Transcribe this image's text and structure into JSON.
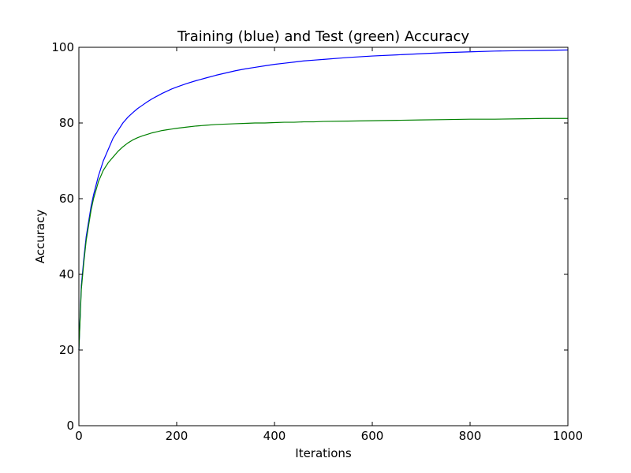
{
  "chart_data": {
    "type": "line",
    "title": "Training (blue) and Test (green) Accuracy",
    "xlabel": "Iterations",
    "ylabel": "Accuracy",
    "xlim": [
      0,
      1000
    ],
    "ylim": [
      0,
      100
    ],
    "xticks": [
      0,
      200,
      400,
      600,
      800,
      1000
    ],
    "yticks": [
      0,
      20,
      40,
      60,
      80,
      100
    ],
    "grid": false,
    "legend": "none",
    "x": [
      0,
      5,
      10,
      15,
      20,
      25,
      30,
      40,
      50,
      60,
      70,
      80,
      90,
      100,
      110,
      120,
      130,
      140,
      150,
      160,
      170,
      180,
      190,
      200,
      220,
      240,
      260,
      280,
      300,
      320,
      340,
      360,
      380,
      400,
      420,
      440,
      460,
      480,
      500,
      550,
      600,
      650,
      700,
      750,
      800,
      850,
      900,
      950,
      1000
    ],
    "series": [
      {
        "color": "#0000ff",
        "values": [
          20,
          37,
          44,
          50,
          54,
          58,
          61,
          66,
          70,
          73,
          76,
          78,
          80,
          81.5,
          82.7,
          83.8,
          84.7,
          85.6,
          86.4,
          87.1,
          87.8,
          88.4,
          89,
          89.5,
          90.4,
          91.2,
          91.9,
          92.6,
          93.2,
          93.8,
          94.3,
          94.7,
          95.1,
          95.5,
          95.8,
          96.1,
          96.4,
          96.6,
          96.8,
          97.3,
          97.7,
          98,
          98.3,
          98.6,
          98.8,
          99,
          99.1,
          99.2,
          99.3
        ]
      },
      {
        "color": "#008000",
        "values": [
          20,
          36,
          43,
          49,
          53,
          57,
          60,
          64.5,
          67.5,
          69.5,
          71,
          72.5,
          73.7,
          74.7,
          75.5,
          76.1,
          76.6,
          77,
          77.4,
          77.7,
          78,
          78.2,
          78.4,
          78.6,
          78.9,
          79.2,
          79.4,
          79.6,
          79.7,
          79.8,
          79.9,
          80,
          80,
          80.1,
          80.2,
          80.2,
          80.3,
          80.3,
          80.4,
          80.5,
          80.6,
          80.7,
          80.8,
          80.9,
          81,
          81,
          81.1,
          81.2,
          81.2
        ]
      }
    ]
  }
}
